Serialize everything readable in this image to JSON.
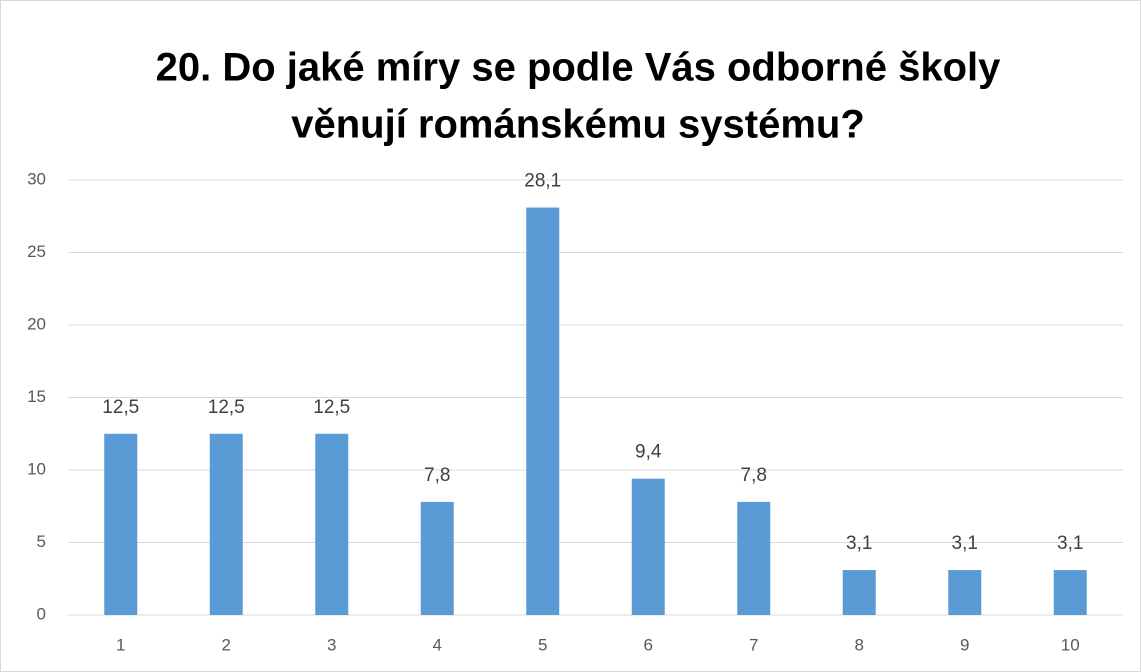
{
  "chart_data": {
    "type": "bar",
    "title": [
      "20. Do jaké míry se podle Vás odborné školy",
      "věnují románskému systému?"
    ],
    "categories": [
      "1",
      "2",
      "3",
      "4",
      "5",
      "6",
      "7",
      "8",
      "9",
      "10"
    ],
    "values": [
      12.5,
      12.5,
      12.5,
      7.8,
      28.1,
      9.4,
      7.8,
      3.1,
      3.1,
      3.1
    ],
    "value_labels": [
      "12,5",
      "12,5",
      "12,5",
      "7,8",
      "28,1",
      "9,4",
      "7,8",
      "3,1",
      "3,1",
      "3,1"
    ],
    "color": "#5b9bd5",
    "ylim": [
      0,
      30
    ],
    "yticks": [
      0,
      5,
      10,
      15,
      20,
      25,
      30
    ],
    "grid": true
  }
}
